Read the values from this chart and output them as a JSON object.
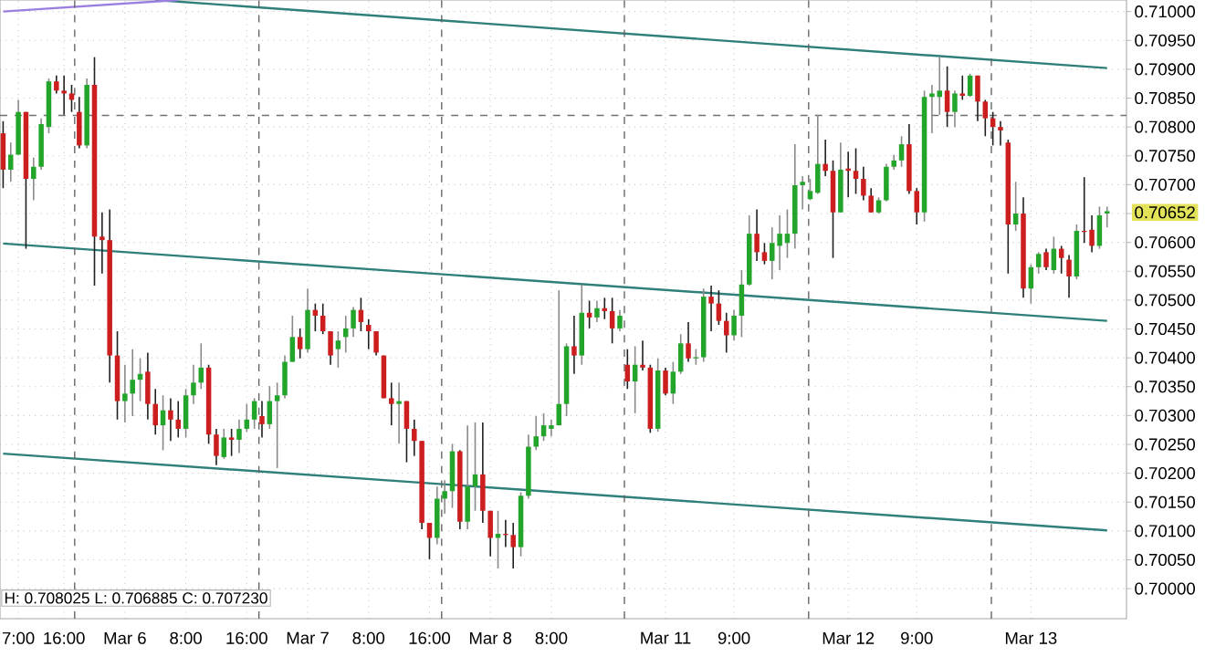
{
  "chart_data": {
    "type": "candlestick",
    "categories": [
      null,
      null,
      "7:00",
      null,
      null,
      null,
      null,
      null,
      "16:00",
      null,
      null,
      null,
      null,
      null,
      null,
      null,
      "Mar 6",
      null,
      null,
      null,
      null,
      null,
      null,
      null,
      "8:00",
      null,
      null,
      null,
      null,
      null,
      null,
      null,
      "16:00",
      null,
      null,
      null,
      null,
      null,
      null,
      null,
      "Mar 7",
      null,
      null,
      null,
      null,
      null,
      null,
      null,
      "8:00",
      null,
      null,
      null,
      null,
      null,
      null,
      null,
      "16:00",
      null,
      null,
      null,
      null,
      null,
      null,
      null,
      "Mar 8",
      null,
      null,
      null,
      null,
      null,
      null,
      null,
      "8:00",
      null,
      null,
      null,
      null,
      null,
      null,
      null,
      null,
      null,
      null,
      null,
      null,
      null,
      null,
      "Mar 11",
      null,
      null,
      null,
      null,
      null,
      null,
      null,
      null,
      "9:00",
      null,
      null,
      null,
      null,
      null,
      null,
      null,
      null,
      null,
      null,
      null,
      null,
      null,
      null,
      "Mar 12",
      null,
      null,
      null,
      null,
      null,
      null,
      null,
      null,
      "9:00",
      null,
      null,
      null,
      null,
      null,
      null,
      null,
      null,
      null,
      null,
      null,
      null,
      null,
      null,
      "Mar 13",
      null,
      null,
      null,
      null,
      null,
      null,
      null,
      null,
      null,
      null
    ],
    "ohlc": [
      [
        0.70789,
        0.7081,
        0.70694,
        0.70726
      ],
      [
        0.70726,
        0.70773,
        0.70705,
        0.70752
      ],
      [
        0.70752,
        0.70847,
        0.70752,
        0.70826
      ],
      [
        0.70826,
        0.70826,
        0.70589,
        0.7071
      ],
      [
        0.7071,
        0.70747,
        0.70673,
        0.70731
      ],
      [
        0.70731,
        0.70815,
        0.70726,
        0.70805
      ],
      [
        0.708,
        0.70884,
        0.70789,
        0.70879
      ],
      [
        0.70879,
        0.70889,
        0.70858,
        0.70863
      ],
      [
        0.70863,
        0.70889,
        0.70821,
        0.70858
      ],
      [
        0.70858,
        0.70873,
        0.70826,
        0.70847
      ],
      [
        0.70826,
        0.70852,
        0.70763,
        0.70768
      ],
      [
        0.70768,
        0.70884,
        0.70763,
        0.70873
      ],
      [
        0.70873,
        0.70921,
        0.70525,
        0.7061
      ],
      [
        0.7061,
        0.70652,
        0.70546,
        0.70604
      ],
      [
        0.70604,
        0.70657,
        0.70357,
        0.70404
      ],
      [
        0.70404,
        0.70446,
        0.70293,
        0.70325
      ],
      [
        0.70325,
        0.70388,
        0.70288,
        0.70338
      ],
      [
        0.70338,
        0.70415,
        0.70299,
        0.70362
      ],
      [
        0.70362,
        0.70399,
        0.70325,
        0.70372
      ],
      [
        0.70376,
        0.70409,
        0.70293,
        0.7032
      ],
      [
        0.7032,
        0.70346,
        0.70267,
        0.70283
      ],
      [
        0.70283,
        0.70335,
        0.7024,
        0.70309
      ],
      [
        0.70309,
        0.7033,
        0.70256,
        0.70293
      ],
      [
        0.70293,
        0.70325,
        0.70262,
        0.70277
      ],
      [
        0.70277,
        0.70346,
        0.70262,
        0.70335
      ],
      [
        0.70335,
        0.70388,
        0.7032,
        0.70357
      ],
      [
        0.70357,
        0.70425,
        0.70346,
        0.70383
      ],
      [
        0.70383,
        0.70388,
        0.70251,
        0.70267
      ],
      [
        0.70267,
        0.70277,
        0.70214,
        0.7023
      ],
      [
        0.70228,
        0.70277,
        0.70225,
        0.70262
      ],
      [
        0.70262,
        0.70277,
        0.7023,
        0.70258
      ],
      [
        0.70258,
        0.70293,
        0.70235,
        0.70277
      ],
      [
        0.70277,
        0.7032,
        0.70272,
        0.70293
      ],
      [
        0.70293,
        0.7033,
        0.70277,
        0.70325
      ],
      [
        0.70299,
        0.70325,
        0.70262,
        0.70285
      ],
      [
        0.70285,
        0.70351,
        0.70277,
        0.70325
      ],
      [
        0.70325,
        0.70357,
        0.70209,
        0.70335
      ],
      [
        0.70335,
        0.70404,
        0.7033,
        0.70393
      ],
      [
        0.70393,
        0.70473,
        0.70393,
        0.70436
      ],
      [
        0.70436,
        0.70451,
        0.70399,
        0.70415
      ],
      [
        0.70415,
        0.7052,
        0.70409,
        0.70483
      ],
      [
        0.70483,
        0.70494,
        0.70446,
        0.70473
      ],
      [
        0.70473,
        0.70494,
        0.70441,
        0.70446
      ],
      [
        0.70446,
        0.70446,
        0.70388,
        0.70404
      ],
      [
        0.70415,
        0.70446,
        0.70383,
        0.7043
      ],
      [
        0.70436,
        0.70473,
        0.70409,
        0.70451
      ],
      [
        0.70451,
        0.70488,
        0.70436,
        0.70483
      ],
      [
        0.70483,
        0.70504,
        0.70446,
        0.70462
      ],
      [
        0.70457,
        0.70467,
        0.70415,
        0.70446
      ],
      [
        0.70446,
        0.70446,
        0.70404,
        0.70409
      ],
      [
        0.70404,
        0.70404,
        0.7033,
        0.7033
      ],
      [
        0.7033,
        0.70357,
        0.70283,
        0.7032
      ],
      [
        0.7032,
        0.70357,
        0.70251,
        0.70325
      ],
      [
        0.70325,
        0.70325,
        0.70219,
        0.70277
      ],
      [
        0.70277,
        0.70293,
        0.7023,
        0.70256
      ],
      [
        0.70256,
        0.70256,
        0.70103,
        0.70114
      ],
      [
        0.70114,
        0.70114,
        0.70051,
        0.70088
      ],
      [
        0.70088,
        0.70177,
        0.70077,
        0.70156
      ],
      [
        0.70156,
        0.70188,
        0.7013,
        0.70169
      ],
      [
        0.70169,
        0.70251,
        0.7014,
        0.70238
      ],
      [
        0.70238,
        0.7024,
        0.70103,
        0.70116
      ],
      [
        0.70116,
        0.70283,
        0.70103,
        0.70177
      ],
      [
        0.70177,
        0.70288,
        0.70135,
        0.70198
      ],
      [
        0.70198,
        0.70288,
        0.70114,
        0.70135
      ],
      [
        0.70135,
        0.70135,
        0.70056,
        0.70088
      ],
      [
        0.70088,
        0.70135,
        0.70035,
        0.70095
      ],
      [
        0.70095,
        0.70119,
        0.70072,
        0.70093
      ],
      [
        0.70093,
        0.70114,
        0.70035,
        0.70072
      ],
      [
        0.70072,
        0.70167,
        0.70056,
        0.70161
      ],
      [
        0.70161,
        0.70267,
        0.70156,
        0.70246
      ],
      [
        0.70246,
        0.70299,
        0.7024,
        0.70264
      ],
      [
        0.70264,
        0.70304,
        0.70256,
        0.70283
      ],
      [
        0.70277,
        0.70293,
        0.70264,
        0.70283
      ],
      [
        0.70283,
        0.70517,
        0.70283,
        0.7032
      ],
      [
        0.7032,
        0.70425,
        0.70299,
        0.7042
      ],
      [
        0.7042,
        0.70473,
        0.70372,
        0.70404
      ],
      [
        0.70404,
        0.70527,
        0.70388,
        0.70478
      ],
      [
        0.70478,
        0.70499,
        0.70451,
        0.7047
      ],
      [
        0.7047,
        0.70499,
        0.70462,
        0.70486
      ],
      [
        0.70486,
        0.70504,
        0.70467,
        0.70481
      ],
      [
        0.70481,
        0.70504,
        0.70425,
        0.70451
      ],
      [
        0.70451,
        0.70483,
        0.70446,
        0.70473
      ],
      [
        0.70388,
        0.70415,
        0.70346,
        0.70359
      ],
      [
        0.70359,
        0.7042,
        0.70304,
        0.70388
      ],
      [
        0.70388,
        0.7043,
        0.70378,
        0.70383
      ],
      [
        0.70383,
        0.70388,
        0.7027,
        0.70277
      ],
      [
        0.70277,
        0.70399,
        0.70272,
        0.70378
      ],
      [
        0.70378,
        0.70383,
        0.70335,
        0.70338
      ],
      [
        0.70338,
        0.70393,
        0.7032,
        0.70376
      ],
      [
        0.70376,
        0.70441,
        0.70372,
        0.70425
      ],
      [
        0.70425,
        0.70462,
        0.70393,
        0.70399
      ],
      [
        0.70399,
        0.70415,
        0.70388,
        0.70401
      ],
      [
        0.70401,
        0.7052,
        0.70393,
        0.70506
      ],
      [
        0.70506,
        0.70525,
        0.70446,
        0.70494
      ],
      [
        0.70494,
        0.70517,
        0.70457,
        0.70464
      ],
      [
        0.70464,
        0.70478,
        0.70409,
        0.70439
      ],
      [
        0.70439,
        0.70483,
        0.7043,
        0.70473
      ],
      [
        0.70473,
        0.70552,
        0.70436,
        0.70527
      ],
      [
        0.70527,
        0.70647,
        0.70525,
        0.70615
      ],
      [
        0.70615,
        0.70657,
        0.70568,
        0.70583
      ],
      [
        0.70583,
        0.70599,
        0.70562,
        0.70568
      ],
      [
        0.70568,
        0.70626,
        0.70536,
        0.70599
      ],
      [
        0.70594,
        0.70647,
        0.70552,
        0.70615
      ],
      [
        0.70599,
        0.70657,
        0.70573,
        0.70615
      ],
      [
        0.70615,
        0.7077,
        0.70589,
        0.70699
      ],
      [
        0.70699,
        0.70715,
        0.70657,
        0.70705
      ],
      [
        0.70675,
        0.7071,
        0.70673,
        0.70689
      ],
      [
        0.70686,
        0.70821,
        0.70684,
        0.70736
      ],
      [
        0.70736,
        0.70778,
        0.70715,
        0.70724
      ],
      [
        0.70724,
        0.70742,
        0.70573,
        0.70652
      ],
      [
        0.70652,
        0.70773,
        0.70652,
        0.70726
      ],
      [
        0.70728,
        0.70757,
        0.70678,
        0.70724
      ],
      [
        0.70724,
        0.70763,
        0.70684,
        0.7071
      ],
      [
        0.7071,
        0.70731,
        0.70673,
        0.70681
      ],
      [
        0.70681,
        0.70694,
        0.70652,
        0.70652
      ],
      [
        0.70652,
        0.70678,
        0.7065,
        0.70673
      ],
      [
        0.70673,
        0.70736,
        0.70671,
        0.70731
      ],
      [
        0.70731,
        0.70752,
        0.70726,
        0.70742
      ],
      [
        0.70742,
        0.70784,
        0.70731,
        0.7077
      ],
      [
        0.7077,
        0.70805,
        0.70684,
        0.70689
      ],
      [
        0.70689,
        0.70694,
        0.70631,
        0.70652
      ],
      [
        0.70652,
        0.70863,
        0.70636,
        0.70852
      ],
      [
        0.70852,
        0.70873,
        0.70789,
        0.70858
      ],
      [
        0.70852,
        0.70921,
        0.70821,
        0.70863
      ],
      [
        0.70863,
        0.70905,
        0.708,
        0.70826
      ],
      [
        0.70826,
        0.70863,
        0.708,
        0.70858
      ],
      [
        0.70858,
        0.70889,
        0.70847,
        0.70854
      ],
      [
        0.70854,
        0.70892,
        0.70852,
        0.70889
      ],
      [
        0.70889,
        0.70889,
        0.7081,
        0.70844
      ],
      [
        0.70844,
        0.70847,
        0.70784,
        0.70815
      ],
      [
        0.70815,
        0.70826,
        0.70768,
        0.708
      ],
      [
        0.708,
        0.7081,
        0.70768,
        0.70794
      ],
      [
        0.70773,
        0.70778,
        0.70546,
        0.70631
      ],
      [
        0.70631,
        0.70705,
        0.7062,
        0.7065
      ],
      [
        0.7065,
        0.70678,
        0.70504,
        0.7052
      ],
      [
        0.7052,
        0.70562,
        0.70494,
        0.70557
      ],
      [
        0.70557,
        0.70583,
        0.70546,
        0.7058
      ],
      [
        0.70583,
        0.70589,
        0.70552,
        0.70557
      ],
      [
        0.70552,
        0.7061,
        0.70546,
        0.70589
      ],
      [
        0.70589,
        0.70594,
        0.70546,
        0.70573
      ],
      [
        0.7057,
        0.70578,
        0.70504,
        0.70541
      ],
      [
        0.70541,
        0.70631,
        0.70536,
        0.7062
      ],
      [
        0.7062,
        0.70713,
        0.70599,
        0.70618
      ],
      [
        0.70622,
        0.70647,
        0.70583,
        0.70594
      ],
      [
        0.70594,
        0.70662,
        0.70589,
        0.70647
      ],
      [
        0.7065,
        0.70662,
        0.70626,
        0.70654
      ]
    ],
    "series": [
      {
        "type": "line",
        "color": "#2f7f7a",
        "values": [
          null,
          null,
          null,
          null,
          null,
          null,
          null,
          null,
          null,
          null,
          null,
          null,
          null,
          null,
          null,
          null,
          null,
          null,
          null,
          null,
          0.7102,
          null,
          null,
          null,
          null,
          null,
          null,
          null,
          null,
          null,
          null,
          null,
          null,
          null,
          null,
          null,
          null,
          null,
          null,
          null,
          null,
          null,
          null,
          null,
          null,
          null,
          null,
          null,
          null,
          null,
          null,
          null,
          null,
          null,
          null,
          null,
          null,
          null,
          null,
          null,
          null,
          null,
          null,
          null,
          null,
          null,
          null,
          null,
          null,
          null,
          null,
          null,
          null,
          null,
          null,
          null,
          null,
          null,
          null,
          null,
          null,
          null,
          null,
          null,
          null,
          null,
          null,
          null,
          null,
          null,
          null,
          null,
          null,
          null,
          null,
          null,
          null,
          null,
          null,
          null,
          null,
          null,
          null,
          null,
          null,
          null,
          null,
          null,
          null,
          null,
          null,
          null,
          null,
          null,
          null,
          null,
          null,
          null,
          null,
          null,
          null,
          null,
          null,
          null,
          null,
          null,
          null,
          null,
          null,
          null,
          null,
          null,
          null,
          null,
          null,
          null,
          null,
          null,
          null,
          null,
          null,
          null,
          null,
          null,
          null,
          0.70902
        ]
      },
      {
        "type": "line",
        "color": "#2f7f7a",
        "values": [
          0.70598,
          null,
          null,
          null,
          null,
          null,
          null,
          null,
          null,
          null,
          null,
          null,
          null,
          null,
          null,
          null,
          null,
          null,
          null,
          null,
          null,
          null,
          null,
          null,
          null,
          null,
          null,
          null,
          null,
          null,
          null,
          null,
          null,
          null,
          null,
          null,
          null,
          null,
          null,
          null,
          null,
          null,
          null,
          null,
          null,
          null,
          null,
          null,
          null,
          null,
          null,
          null,
          null,
          null,
          null,
          null,
          null,
          null,
          null,
          null,
          null,
          null,
          null,
          null,
          null,
          null,
          null,
          null,
          null,
          null,
          null,
          null,
          null,
          null,
          null,
          null,
          null,
          null,
          null,
          null,
          null,
          null,
          null,
          null,
          null,
          null,
          null,
          null,
          null,
          null,
          null,
          null,
          null,
          null,
          null,
          null,
          null,
          null,
          null,
          null,
          null,
          null,
          null,
          null,
          null,
          null,
          null,
          null,
          null,
          null,
          null,
          null,
          null,
          null,
          null,
          null,
          null,
          null,
          null,
          null,
          null,
          null,
          null,
          null,
          null,
          null,
          null,
          null,
          null,
          null,
          null,
          null,
          null,
          null,
          null,
          null,
          null,
          null,
          null,
          null,
          null,
          null,
          null,
          null,
          null,
          0.70464
        ]
      },
      {
        "type": "line",
        "color": "#2f7f7a",
        "values": [
          0.70234,
          null,
          null,
          null,
          null,
          null,
          null,
          null,
          null,
          null,
          null,
          null,
          null,
          null,
          null,
          null,
          null,
          null,
          null,
          null,
          null,
          null,
          null,
          null,
          null,
          null,
          null,
          null,
          null,
          null,
          null,
          null,
          null,
          null,
          null,
          null,
          null,
          null,
          null,
          null,
          null,
          null,
          null,
          null,
          null,
          null,
          null,
          null,
          null,
          null,
          null,
          null,
          null,
          null,
          null,
          null,
          null,
          null,
          null,
          null,
          null,
          null,
          null,
          null,
          null,
          null,
          null,
          null,
          null,
          null,
          null,
          null,
          null,
          null,
          null,
          null,
          null,
          null,
          null,
          null,
          null,
          null,
          null,
          null,
          null,
          null,
          null,
          null,
          null,
          null,
          null,
          null,
          null,
          null,
          null,
          null,
          null,
          null,
          null,
          null,
          null,
          null,
          null,
          null,
          null,
          null,
          null,
          null,
          null,
          null,
          null,
          null,
          null,
          null,
          null,
          null,
          null,
          null,
          null,
          null,
          null,
          null,
          null,
          null,
          null,
          null,
          null,
          null,
          null,
          null,
          null,
          null,
          null,
          null,
          null,
          null,
          null,
          null,
          null,
          null,
          null,
          null,
          null,
          null,
          null,
          0.70101
        ]
      },
      {
        "type": "line",
        "color": "#9b7fe0",
        "values": [
          0.71,
          null,
          null,
          null,
          null,
          null,
          null,
          null,
          null,
          null,
          null,
          null,
          null,
          null,
          null,
          null,
          null,
          null,
          null,
          null,
          null,
          null,
          null,
          0.7102,
          null,
          null,
          null,
          null,
          null,
          null,
          null,
          null,
          null,
          null,
          null,
          null,
          null,
          null,
          null,
          null,
          null,
          null,
          null,
          null,
          null,
          null,
          null,
          null,
          null,
          null,
          null,
          null,
          null,
          null,
          null,
          null,
          null,
          null,
          null,
          null,
          null,
          null,
          null,
          null,
          null,
          null,
          null,
          null,
          null,
          null,
          null,
          null,
          null,
          null,
          null,
          null,
          null,
          null,
          null,
          null,
          null,
          null,
          null,
          null,
          null,
          null,
          null,
          null,
          null,
          null,
          null,
          null,
          null,
          null,
          null,
          null,
          null,
          null,
          null,
          null,
          null,
          null,
          null,
          null,
          null,
          null,
          null,
          null,
          null,
          null,
          null,
          null,
          null,
          null,
          null,
          null,
          null,
          null,
          null,
          null,
          null,
          null,
          null,
          null,
          null,
          null,
          null,
          null,
          null,
          null,
          null,
          null,
          null,
          null,
          null,
          null,
          null,
          null,
          null,
          null,
          null,
          null,
          null,
          null,
          null,
          null
        ]
      }
    ],
    "ylim": [
      0.69948,
      0.7102
    ],
    "yticks": [
      {
        "value": 0.7,
        "label": "0.70000"
      },
      {
        "value": 0.7005,
        "label": "0.70050"
      },
      {
        "value": 0.701,
        "label": "0.70100"
      },
      {
        "value": 0.7015,
        "label": "0.70150"
      },
      {
        "value": 0.702,
        "label": "0.70200"
      },
      {
        "value": 0.7025,
        "label": "0.70250"
      },
      {
        "value": 0.703,
        "label": "0.70300"
      },
      {
        "value": 0.7035,
        "label": "0.70350"
      },
      {
        "value": 0.704,
        "label": "0.70400"
      },
      {
        "value": 0.7045,
        "label": "0.70450"
      },
      {
        "value": 0.705,
        "label": "0.70500"
      },
      {
        "value": 0.7055,
        "label": "0.70550"
      },
      {
        "value": 0.706,
        "label": "0.70600"
      },
      {
        "value": 0.7065,
        "label": null
      },
      {
        "value": 0.70652,
        "label": "0.70652"
      },
      {
        "value": 0.707,
        "label": "0.70700"
      },
      {
        "value": 0.7075,
        "label": "0.70750"
      },
      {
        "value": 0.708,
        "label": "0.70800"
      },
      {
        "value": 0.7085,
        "label": "0.70850"
      },
      {
        "value": 0.709,
        "label": "0.70900"
      },
      {
        "value": 0.7095,
        "label": "0.70950"
      },
      {
        "value": 0.71,
        "label": "0.71000"
      }
    ],
    "grid": true,
    "ref_lines": [
      {
        "axis": "y",
        "value": 0.7082,
        "color": "#707070",
        "line_style": "dashed"
      }
    ],
    "annotations": [
      "H: 0.708025  L: 0.706885  C: 0.707230"
    ]
  }
}
